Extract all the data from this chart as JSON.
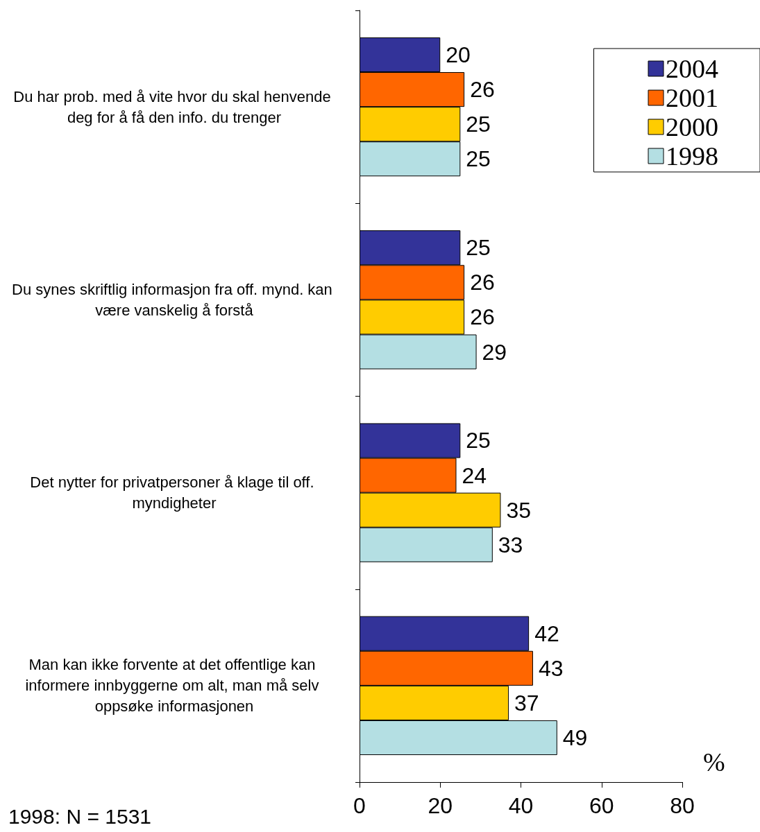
{
  "chart_data": {
    "type": "bar",
    "orientation": "horizontal",
    "xlabel": "%",
    "categories": [
      "Du har prob. med å vite hvor du skal henvende deg for å få den info. du trenger",
      "Du synes skriftlig informasjon fra off. mynd. kan være vanskelig å forstå",
      "Det nytter for privatpersoner å klage til off. myndigheter",
      "Man kan ikke forvente at det offentlige kan informere innbyggerne om alt, man må selv oppsøke informasjonen"
    ],
    "series": [
      {
        "name": "2004",
        "color": "#333399",
        "values": [
          20,
          25,
          25,
          42
        ]
      },
      {
        "name": "2001",
        "color": "#ff6600",
        "values": [
          26,
          26,
          24,
          43
        ]
      },
      {
        "name": "2000",
        "color": "#ffcc00",
        "values": [
          25,
          26,
          35,
          37
        ]
      },
      {
        "name": "1998",
        "color": "#b4dfe3",
        "values": [
          25,
          29,
          33,
          49
        ]
      }
    ],
    "xlim": [
      0,
      80
    ],
    "xticks": [
      0,
      20,
      40,
      60,
      80
    ],
    "data_labels": true,
    "grid": false,
    "legend": "top right",
    "annotations": [
      "1998: N = 1531"
    ]
  }
}
